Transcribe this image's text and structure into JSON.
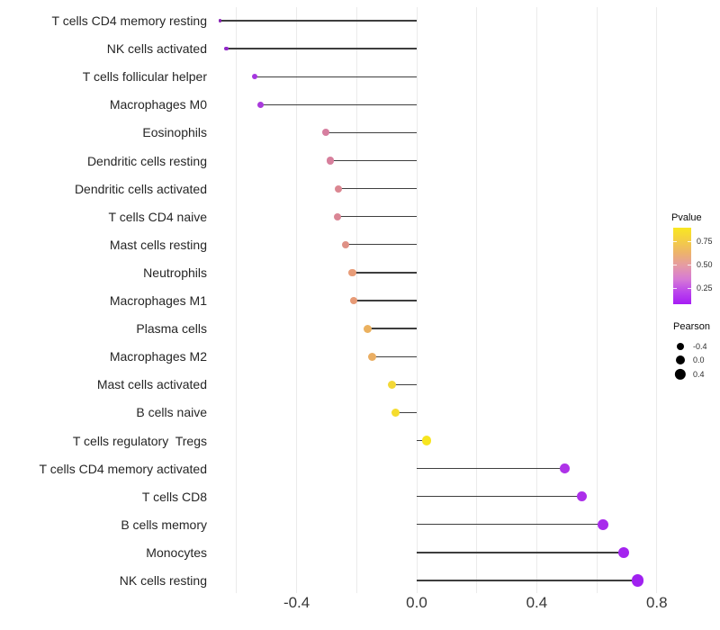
{
  "chart_data": {
    "type": "lollipop",
    "title": "",
    "xlabel": "",
    "ylabel": "",
    "x_axis": {
      "ticks": [
        {
          "value": -0.4,
          "label": "-0.4"
        },
        {
          "value": 0.0,
          "label": "0.0"
        },
        {
          "value": 0.4,
          "label": "0.4"
        },
        {
          "value": 0.8,
          "label": "0.8"
        }
      ],
      "gridline_values": [
        -0.6,
        -0.4,
        -0.2,
        0.0,
        0.2,
        0.4,
        0.6,
        0.8
      ],
      "range": [
        -0.72,
        0.81
      ]
    },
    "baseline_value": 0.0,
    "points": [
      {
        "label": "T cells CD4 memory resting",
        "pearson": -0.655,
        "dot_color": "#8822b4",
        "dot_diameter": 3.8
      },
      {
        "label": "NK cells activated",
        "pearson": -0.635,
        "dot_color": "#9129c8",
        "dot_diameter": 4.6
      },
      {
        "label": "T cells follicular helper",
        "pearson": -0.54,
        "dot_color": "#a637e0",
        "dot_diameter": 6.4
      },
      {
        "label": "Macrophages M0",
        "pearson": -0.52,
        "dot_color": "#a93adc",
        "dot_diameter": 7.0
      },
      {
        "label": "Eosinophils",
        "pearson": -0.302,
        "dot_color": "#d67e9f",
        "dot_diameter": 8.0
      },
      {
        "label": "Dendritic cells resting",
        "pearson": -0.287,
        "dot_color": "#d77f9c",
        "dot_diameter": 8.2
      },
      {
        "label": "Dendritic cells activated",
        "pearson": -0.262,
        "dot_color": "#db8792",
        "dot_diameter": 8.2
      },
      {
        "label": "T cells CD4 naive",
        "pearson": -0.264,
        "dot_color": "#da8695",
        "dot_diameter": 8.2
      },
      {
        "label": "Mast cells resting",
        "pearson": -0.236,
        "dot_color": "#df9186",
        "dot_diameter": 8.4
      },
      {
        "label": "Neutrophils",
        "pearson": -0.214,
        "dot_color": "#e89c78",
        "dot_diameter": 8.5
      },
      {
        "label": "Macrophages M1",
        "pearson": -0.21,
        "dot_color": "#e79a76",
        "dot_diameter": 8.5
      },
      {
        "label": "Plasma cells",
        "pearson": -0.162,
        "dot_color": "#ebb15f",
        "dot_diameter": 9.0
      },
      {
        "label": "Macrophages M2",
        "pearson": -0.147,
        "dot_color": "#eaae63",
        "dot_diameter": 9.0
      },
      {
        "label": "Mast cells activated",
        "pearson": -0.082,
        "dot_color": "#f3d837",
        "dot_diameter": 9.6
      },
      {
        "label": "B cells naive",
        "pearson": -0.071,
        "dot_color": "#f5dc2d",
        "dot_diameter": 9.6
      },
      {
        "label": "T cells regulatory  Tregs",
        "pearson": 0.033,
        "dot_color": "#f7e51f",
        "dot_diameter": 10.2
      },
      {
        "label": "T cells CD4 memory activated",
        "pearson": 0.494,
        "dot_color": "#ae33e8",
        "dot_diameter": 10.7
      },
      {
        "label": "T cells CD8",
        "pearson": 0.551,
        "dot_color": "#ac2fea",
        "dot_diameter": 10.9
      },
      {
        "label": "B cells memory",
        "pearson": 0.62,
        "dot_color": "#a82aec",
        "dot_diameter": 11.9
      },
      {
        "label": "Monocytes",
        "pearson": 0.69,
        "dot_color": "#a424ef",
        "dot_diameter": 12.6
      },
      {
        "label": "NK cells resting",
        "pearson": 0.737,
        "dot_color": "#a021f0",
        "dot_diameter": 13.3
      }
    ],
    "legend": {
      "pvalue": {
        "title": "Pvalue",
        "ticks": [
          {
            "label": "0.75",
            "pos": 0.18
          },
          {
            "label": "0.50",
            "pos": 0.48
          },
          {
            "label": "0.25",
            "pos": 0.79
          }
        ],
        "gradient_stops": [
          {
            "color": "#f9e721",
            "pos": 0
          },
          {
            "color": "#f4cf43",
            "pos": 16
          },
          {
            "color": "#edb36b",
            "pos": 33
          },
          {
            "color": "#e59aa6",
            "pos": 50
          },
          {
            "color": "#d77bd4",
            "pos": 67
          },
          {
            "color": "#bb45ec",
            "pos": 84
          },
          {
            "color": "#a61cf4",
            "pos": 100
          }
        ]
      },
      "pearson": {
        "title": "Pearson",
        "items": [
          {
            "label": "-0.4",
            "dot_diameter": 8.0
          },
          {
            "label": "0.0",
            "dot_diameter": 10.0
          },
          {
            "label": "0.4",
            "dot_diameter": 12.3
          }
        ]
      }
    },
    "style": {
      "segment_color": "#3e3e3e",
      "gridline_color": "#ebebeb",
      "axis_text_color": "#383838",
      "label_text_color": "#262626",
      "legend_dot_color": "#000000",
      "background": "#ffffff"
    }
  }
}
